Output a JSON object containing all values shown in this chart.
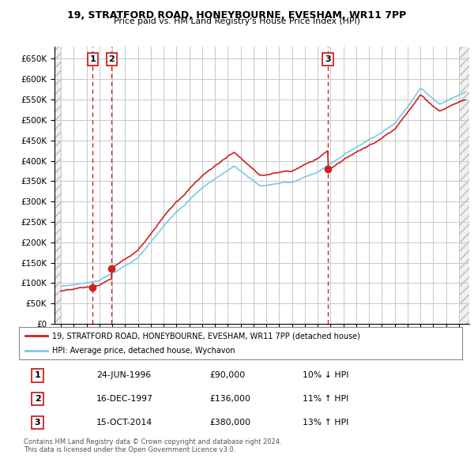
{
  "title_line1": "19, STRATFORD ROAD, HONEYBOURNE, EVESHAM, WR11 7PP",
  "title_line2": "Price paid vs. HM Land Registry's House Price Index (HPI)",
  "ylim": [
    0,
    680000
  ],
  "yticks": [
    0,
    50000,
    100000,
    150000,
    200000,
    250000,
    300000,
    350000,
    400000,
    450000,
    500000,
    550000,
    600000,
    650000
  ],
  "ytick_labels": [
    "£0",
    "£50K",
    "£100K",
    "£150K",
    "£200K",
    "£250K",
    "£300K",
    "£350K",
    "£400K",
    "£450K",
    "£500K",
    "£550K",
    "£600K",
    "£650K"
  ],
  "xlim_start": 1993.5,
  "xlim_end": 2025.8,
  "transaction_dates": [
    1996.48,
    1997.96,
    2014.79
  ],
  "transaction_prices": [
    90000,
    136000,
    380000
  ],
  "transaction_labels": [
    "1",
    "2",
    "3"
  ],
  "hpi_color": "#7ec8e3",
  "price_color": "#cc2222",
  "vline_color": "#cc2222",
  "grid_color": "#c8c8c8",
  "legend_line1": "19, STRATFORD ROAD, HONEYBOURNE, EVESHAM, WR11 7PP (detached house)",
  "legend_line2": "HPI: Average price, detached house, Wychavon",
  "table_data": [
    [
      "1",
      "24-JUN-1996",
      "£90,000",
      "10% ↓ HPI"
    ],
    [
      "2",
      "16-DEC-1997",
      "£136,000",
      "11% ↑ HPI"
    ],
    [
      "3",
      "15-OCT-2014",
      "£380,000",
      "13% ↑ HPI"
    ]
  ],
  "footnote": "Contains HM Land Registry data © Crown copyright and database right 2024.\nThis data is licensed under the Open Government Licence v3.0."
}
